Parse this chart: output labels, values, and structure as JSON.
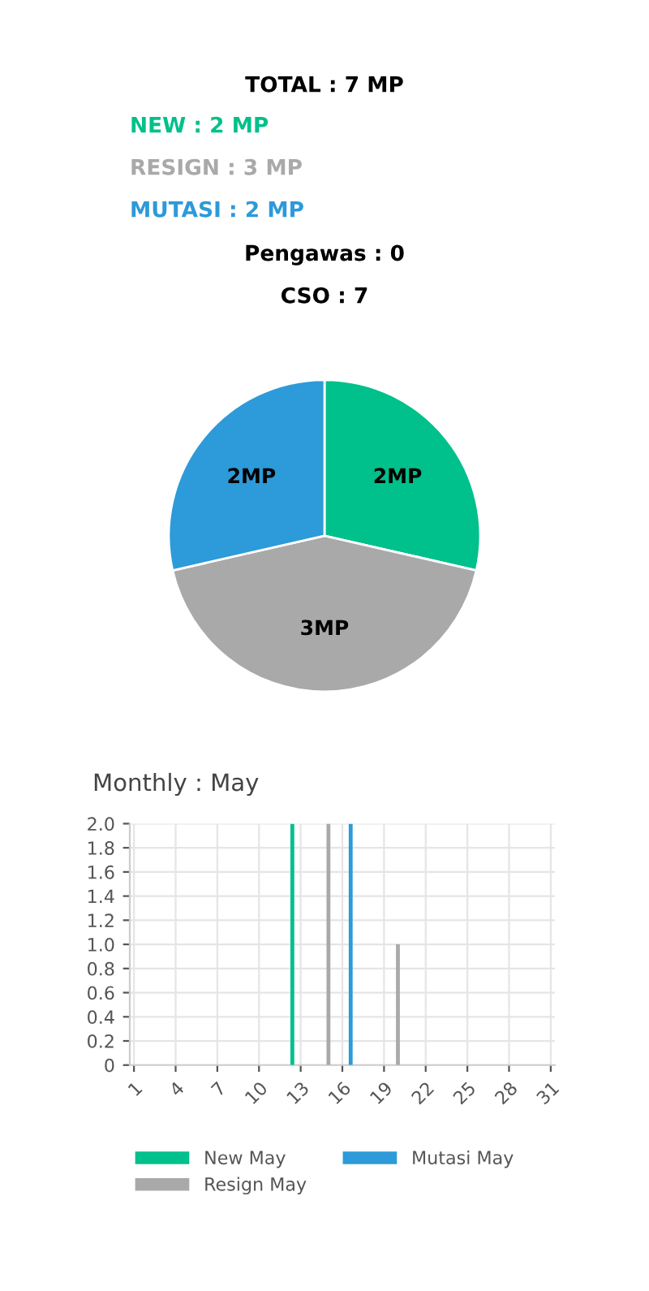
{
  "chart_data": [
    {
      "type": "pie",
      "title": "TOTAL : 7 MP",
      "annotations": [
        "NEW : 2 MP",
        "RESIGN : 3 MP",
        "MUTASI : 2 MP",
        "Pengawas : 0",
        "CSO : 7"
      ],
      "categories": [
        null,
        null,
        null
      ],
      "values": [
        2,
        3,
        2
      ],
      "colors": [
        "#00c08b",
        "#a9a9a9",
        "#2d9ad9"
      ],
      "value_labels": [
        "2MP",
        "3MP",
        "2MP"
      ]
    },
    {
      "type": "bar",
      "title": "Monthly : May",
      "categories": [
        "1",
        null,
        null,
        "4",
        null,
        null,
        "7",
        null,
        null,
        "10",
        null,
        null,
        "13",
        null,
        null,
        "16",
        null,
        null,
        "19",
        null,
        null,
        "22",
        null,
        null,
        "25",
        null,
        null,
        "28",
        null,
        null,
        "31"
      ],
      "series": [
        {
          "name": "New May",
          "color": "#00c08b",
          "values": [
            0,
            0,
            0,
            0,
            0,
            0,
            0,
            0,
            0,
            0,
            0,
            0,
            2,
            0,
            0,
            0,
            0,
            0,
            0,
            0,
            0,
            0,
            0,
            0,
            0,
            0,
            0,
            0,
            0,
            0,
            0
          ]
        },
        {
          "name": "Resign May",
          "color": "#a9a9a9",
          "values": [
            0,
            0,
            0,
            0,
            0,
            0,
            0,
            0,
            0,
            0,
            0,
            0,
            0,
            0,
            2,
            0,
            0,
            0,
            0,
            1,
            0,
            0,
            0,
            0,
            0,
            0,
            0,
            0,
            0,
            0,
            0
          ]
        },
        {
          "name": "Mutasi May",
          "color": "#2d9ad9",
          "values": [
            0,
            0,
            0,
            0,
            0,
            0,
            0,
            0,
            0,
            0,
            0,
            0,
            0,
            0,
            0,
            2,
            0,
            0,
            0,
            0,
            0,
            0,
            0,
            0,
            0,
            0,
            0,
            0,
            0,
            0,
            0
          ]
        }
      ],
      "ylim": [
        0,
        2
      ],
      "yticks": [
        0,
        {
          "value": 0.2,
          "label": "0.2"
        },
        {
          "value": 0.4,
          "label": "0.4"
        },
        {
          "value": 0.6,
          "label": "0.6"
        },
        {
          "value": 0.8,
          "label": "0.8"
        },
        {
          "value": 1,
          "label": "1.0"
        },
        {
          "value": 1.2,
          "label": "1.2"
        },
        {
          "value": 1.4,
          "label": "1.4"
        },
        {
          "value": 1.6,
          "label": "1.6"
        },
        {
          "value": 1.8,
          "label": "1.8"
        },
        {
          "value": 2,
          "label": "2.0"
        }
      ],
      "grid": true,
      "legend": "bottom"
    }
  ]
}
